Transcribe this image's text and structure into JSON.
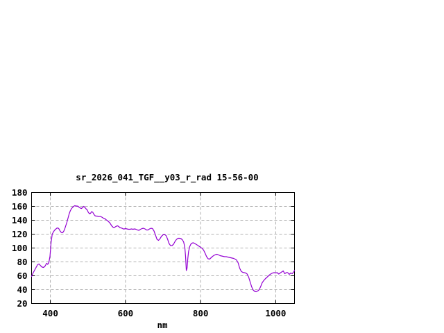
{
  "chart": {
    "title": "sr_2026_041_TGF__y03_r_rad 15-56-00",
    "xlabel": "nm"
  },
  "colors": {
    "background": "#ffffff",
    "frame": "#000000",
    "grid": "#b0b0b0",
    "text": "#000000",
    "line": "#9400d3"
  },
  "chart_data": {
    "type": "line",
    "title": "sr_2026_041_TGF__y03_r_rad 15-56-00",
    "xlabel": "nm",
    "ylabel": "",
    "xlim": [
      350,
      1050
    ],
    "ylim": [
      20,
      180
    ],
    "x_ticks": [
      400,
      600,
      800,
      1000
    ],
    "y_ticks": [
      20,
      40,
      60,
      80,
      100,
      120,
      140,
      160,
      180
    ],
    "grid": true,
    "legend": "none",
    "line_color": "#9400d3",
    "series": [
      {
        "name": "sr_2026_041_TGF__y03_r_rad",
        "x": [
          350,
          354,
          358,
          362,
          366,
          370,
          374,
          378,
          382,
          386,
          390,
          393,
          396,
          399,
          402,
          405,
          408,
          411,
          414,
          417,
          420,
          423,
          426,
          429,
          432,
          435,
          438,
          441,
          444,
          447,
          450,
          453,
          456,
          459,
          462,
          465,
          468,
          471,
          474,
          477,
          480,
          483,
          486,
          489,
          492,
          495,
          498,
          501,
          504,
          507,
          510,
          513,
          516,
          519,
          522,
          525,
          528,
          531,
          534,
          537,
          540,
          543,
          546,
          549,
          552,
          555,
          558,
          561,
          564,
          567,
          570,
          573,
          576,
          579,
          582,
          585,
          588,
          591,
          594,
          597,
          600,
          604,
          608,
          612,
          616,
          620,
          624,
          628,
          632,
          636,
          640,
          644,
          648,
          652,
          656,
          660,
          664,
          668,
          672,
          676,
          680,
          684,
          688,
          692,
          696,
          700,
          704,
          708,
          712,
          716,
          720,
          724,
          728,
          732,
          736,
          740,
          744,
          748,
          752,
          755,
          758,
          760,
          762,
          764,
          766,
          768,
          771,
          774,
          777,
          780,
          783,
          786,
          789,
          792,
          796,
          800,
          804,
          808,
          812,
          816,
          820,
          824,
          828,
          832,
          836,
          840,
          844,
          848,
          852,
          856,
          860,
          864,
          868,
          872,
          876,
          880,
          884,
          888,
          892,
          896,
          900,
          904,
          908,
          912,
          916,
          920,
          924,
          928,
          932,
          936,
          940,
          944,
          948,
          952,
          956,
          960,
          964,
          968,
          972,
          976,
          980,
          984,
          988,
          992,
          996,
          1000,
          1004,
          1008,
          1012,
          1016,
          1020,
          1024,
          1028,
          1032,
          1036,
          1040,
          1044,
          1048,
          1050
        ],
        "y": [
          59,
          64,
          68,
          72,
          76,
          77,
          74.5,
          72.5,
          72,
          74,
          78,
          76.5,
          79,
          88,
          108,
          120,
          123,
          125.5,
          127,
          128.5,
          129,
          127.5,
          124.5,
          122.5,
          122,
          123.5,
          127,
          132,
          137,
          143,
          149,
          153.5,
          156.5,
          158.5,
          160,
          161,
          160.5,
          160.5,
          160,
          158.5,
          157.5,
          157,
          158.5,
          160,
          158.5,
          156.5,
          155,
          151.5,
          149.5,
          150,
          152.5,
          151.5,
          148.5,
          146.5,
          146,
          146,
          145.5,
          145.5,
          145.5,
          144.5,
          143.5,
          142.5,
          142,
          140.5,
          139.5,
          138,
          136.5,
          134,
          131.5,
          130,
          129.5,
          130.5,
          131.5,
          132,
          131,
          129.5,
          129,
          128.5,
          127.5,
          127.5,
          128,
          127.5,
          127,
          127,
          127.5,
          127,
          127.5,
          127,
          126,
          125.5,
          127,
          128,
          128.5,
          127.5,
          126,
          126,
          127.5,
          128.5,
          128,
          124.5,
          118.5,
          112.5,
          111,
          113.5,
          117,
          119,
          119.5,
          118,
          113,
          106.5,
          103.5,
          103.5,
          105.5,
          109.5,
          112.5,
          114,
          114,
          113.5,
          111.5,
          108.5,
          101,
          88,
          67.5,
          71,
          85,
          95,
          102,
          105.5,
          107,
          107.5,
          107,
          106,
          105,
          104,
          102.5,
          101,
          99.5,
          97,
          92.5,
          87.5,
          84.5,
          84,
          86,
          88,
          89.5,
          90.5,
          91,
          90,
          89,
          88.5,
          88,
          87.5,
          87.5,
          87,
          86.5,
          86,
          85.5,
          85,
          84,
          82.5,
          78.5,
          71,
          66.5,
          65,
          64.5,
          64,
          62.5,
          58,
          51,
          44,
          39.5,
          37.5,
          37,
          38,
          40,
          44.5,
          50,
          53,
          55.5,
          57.5,
          59.5,
          61.5,
          63,
          64,
          64.5,
          64,
          64.5,
          62.5,
          64,
          65.5,
          67,
          63,
          64.5,
          64.5,
          62,
          64,
          63,
          65.5,
          68
        ]
      }
    ]
  }
}
